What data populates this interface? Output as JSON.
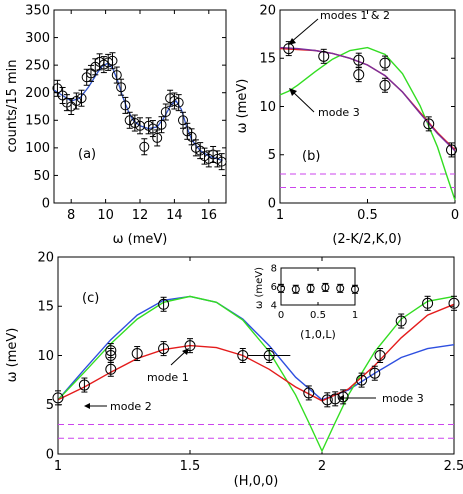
{
  "colors": {
    "data_marker": "#000000",
    "fit_a": "#3355cc",
    "red_curve": "#e41c1c",
    "green_curve": "#33dd22",
    "blue_curve": "#2e4fe0",
    "purple_curve": "#7a2f9c",
    "dashed_lines": "#cc44ee"
  },
  "chart_data": [
    {
      "id": "a",
      "type": "scatter",
      "panel_label": "(a)",
      "xlabel": "ω (meV)",
      "ylabel": "counts/15 min",
      "xlim": [
        7,
        17
      ],
      "ylim": [
        0,
        350
      ],
      "xticks": [
        8,
        10,
        12,
        14,
        16
      ],
      "yticks": [
        0,
        50,
        100,
        150,
        200,
        250,
        300,
        350
      ],
      "x": [
        7.2,
        7.5,
        7.75,
        8.0,
        8.3,
        8.6,
        8.9,
        9.15,
        9.4,
        9.65,
        9.9,
        10.15,
        10.4,
        10.65,
        10.9,
        11.15,
        11.4,
        11.7,
        12.0,
        12.25,
        12.5,
        12.75,
        13.0,
        13.25,
        13.5,
        13.75,
        14.0,
        14.25,
        14.5,
        14.75,
        15.0,
        15.25,
        15.5,
        15.75,
        16.0,
        16.25,
        16.5,
        16.75
      ],
      "y": [
        208,
        195,
        182,
        175,
        185,
        190,
        228,
        235,
        247,
        256,
        251,
        255,
        258,
        232,
        210,
        177,
        150,
        145,
        140,
        102,
        140,
        135,
        118,
        142,
        165,
        190,
        185,
        182,
        150,
        130,
        120,
        100,
        95,
        85,
        80,
        88,
        80,
        75
      ],
      "fit": {
        "x": [
          7.0,
          7.5,
          8.0,
          8.5,
          9.0,
          9.5,
          9.8,
          10.1,
          10.4,
          10.7,
          11.0,
          11.3,
          11.6,
          12.0,
          12.5,
          13.0,
          13.4,
          13.8,
          14.1,
          14.4,
          14.7,
          15.0,
          15.5,
          16.0,
          16.5,
          16.8
        ],
        "y": [
          205,
          195,
          185,
          190,
          210,
          235,
          248,
          253,
          245,
          222,
          192,
          168,
          150,
          140,
          135,
          138,
          155,
          178,
          185,
          170,
          140,
          115,
          95,
          85,
          80,
          77
        ]
      }
    },
    {
      "id": "b",
      "type": "line",
      "panel_label": "(b)",
      "xlabel": "(2-K/2,K,0)",
      "ylabel": "ω (meV)",
      "xlim": [
        1,
        0
      ],
      "ylim": [
        0,
        20
      ],
      "xticks": [
        1,
        0.5,
        0
      ],
      "xtick_labels": [
        "1",
        "0.5",
        "0"
      ],
      "yticks": [
        0,
        5,
        10,
        15,
        20
      ],
      "points": {
        "x": [
          0.95,
          0.75,
          0.55,
          0.55,
          0.4,
          0.4,
          0.15,
          0.02
        ],
        "y": [
          16.0,
          15.2,
          14.8,
          13.3,
          14.5,
          12.2,
          8.2,
          5.5
        ]
      },
      "curves": {
        "green": {
          "x": [
            1.0,
            0.95,
            0.9,
            0.8,
            0.7,
            0.6,
            0.5,
            0.4,
            0.3,
            0.2,
            0.1,
            0.05,
            0.0
          ],
          "y": [
            11.2,
            11.6,
            12.2,
            13.6,
            14.9,
            15.8,
            16.1,
            15.4,
            13.4,
            10.1,
            5.8,
            3.0,
            0.3
          ]
        },
        "red": {
          "x": [
            1.0,
            0.9,
            0.8,
            0.7,
            0.6,
            0.5,
            0.4,
            0.3,
            0.2,
            0.1,
            0.0
          ],
          "y": [
            16.0,
            15.9,
            15.8,
            15.5,
            15.0,
            14.3,
            13.2,
            11.5,
            9.4,
            7.3,
            5.5
          ]
        },
        "purple": {
          "x": [
            1.0,
            0.9,
            0.8,
            0.7,
            0.6,
            0.5,
            0.4,
            0.3,
            0.2,
            0.1,
            0.0
          ],
          "y": [
            16.1,
            16.0,
            15.8,
            15.5,
            15.0,
            14.3,
            13.2,
            11.5,
            9.3,
            7.2,
            5.4
          ]
        },
        "dashed": [
          3.0,
          1.6
        ]
      },
      "annotations": [
        "modes 1 & 2",
        "mode 3"
      ]
    },
    {
      "id": "c",
      "type": "line",
      "panel_label": "(c)",
      "xlabel": "(H,0,0)",
      "ylabel": "ω (meV)",
      "xlim": [
        1,
        2.5
      ],
      "ylim": [
        0,
        20
      ],
      "xticks": [
        1,
        1.5,
        2,
        2.5
      ],
      "xtick_labels": [
        "1",
        "1.5",
        "2",
        "2.5"
      ],
      "yticks": [
        0,
        5,
        10,
        15,
        20
      ],
      "points": {
        "x": [
          1.0,
          1.1,
          1.2,
          1.2,
          1.2,
          1.3,
          1.4,
          1.4,
          1.5,
          1.7,
          1.8,
          1.95,
          2.02,
          2.05,
          2.08,
          2.15,
          2.2,
          2.22,
          2.3,
          2.4,
          2.5
        ],
        "y": [
          5.7,
          7.0,
          8.6,
          10.0,
          10.5,
          10.2,
          10.7,
          15.2,
          11.0,
          10.0,
          10.0,
          6.2,
          5.5,
          5.6,
          5.8,
          7.5,
          8.2,
          10.0,
          13.5,
          15.3,
          15.3
        ]
      },
      "point_h_errors": [
        0,
        0,
        0,
        0,
        0,
        0,
        0,
        0,
        0,
        0,
        0.08,
        0,
        0,
        0,
        0,
        0,
        0,
        0,
        0,
        0,
        0
      ],
      "curves": {
        "green": {
          "x": [
            1.0,
            1.1,
            1.2,
            1.3,
            1.4,
            1.5,
            1.6,
            1.7,
            1.8,
            1.9,
            1.95,
            2.0,
            2.05,
            2.1,
            2.2,
            2.3,
            2.4,
            2.5
          ],
          "y": [
            5.5,
            8.3,
            11.2,
            13.7,
            15.4,
            16.0,
            15.4,
            13.6,
            10.4,
            6.0,
            3.2,
            0.3,
            3.2,
            6.0,
            10.4,
            13.7,
            15.5,
            16.0
          ]
        },
        "red": {
          "x": [
            1.0,
            1.1,
            1.2,
            1.3,
            1.4,
            1.5,
            1.6,
            1.7,
            1.8,
            1.9,
            2.0,
            2.1,
            2.2,
            2.3,
            2.4,
            2.5
          ],
          "y": [
            5.5,
            6.8,
            8.3,
            9.7,
            10.6,
            11.0,
            10.8,
            10.0,
            8.6,
            6.8,
            5.4,
            6.6,
            9.0,
            11.8,
            14.1,
            15.2
          ]
        },
        "blue": {
          "x": [
            1.0,
            1.1,
            1.2,
            1.3,
            1.4,
            1.5,
            1.6,
            1.7,
            1.8,
            1.9,
            2.0,
            2.1,
            2.2,
            2.3,
            2.4,
            2.5
          ],
          "y": [
            5.5,
            8.6,
            11.6,
            14.1,
            15.6,
            16.0,
            15.4,
            13.7,
            11.0,
            7.8,
            5.5,
            6.5,
            8.2,
            9.8,
            10.7,
            11.1
          ]
        },
        "dashed": [
          3.0,
          1.6
        ]
      },
      "annotations": [
        "mode 1",
        "mode 2",
        "mode 3"
      ],
      "inset": {
        "xlabel": "(1,0,L)",
        "ylabel": "ω (meV)",
        "xlim": [
          0,
          1
        ],
        "ylim": [
          4,
          8
        ],
        "xticks": [
          0,
          0.5,
          1
        ],
        "xtick_labels": [
          "0",
          "0.5",
          "1"
        ],
        "yticks": [
          4,
          6,
          8
        ],
        "x": [
          0.0,
          0.2,
          0.4,
          0.6,
          0.8,
          1.0
        ],
        "y": [
          5.8,
          5.7,
          5.8,
          5.9,
          5.8,
          5.7
        ]
      }
    }
  ]
}
